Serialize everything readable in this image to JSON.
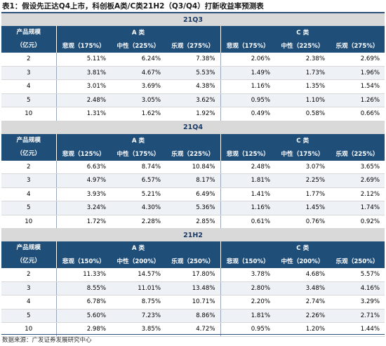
{
  "title": "表1：假设先正达Q4上市，科创板A类/C类21H2（Q3/Q4）打新收益率预测表",
  "row_header": [
    "产品规模",
    "（亿元）"
  ],
  "sections": [
    {
      "name": "21Q3",
      "groups": [
        "A 类",
        "C 类"
      ],
      "columns": [
        "悲观（175%）",
        "中性（225%）",
        "乐观（275%）",
        "悲观（175%）",
        "中性（225%）",
        "乐观（275%）"
      ],
      "rows": [
        {
          "size": "2",
          "values": [
            "5.11%",
            "6.24%",
            "7.38%",
            "2.06%",
            "2.38%",
            "2.69%"
          ]
        },
        {
          "size": "3",
          "values": [
            "3.81%",
            "4.67%",
            "5.53%",
            "1.49%",
            "1.73%",
            "1.96%"
          ]
        },
        {
          "size": "4",
          "values": [
            "3.01%",
            "3.69%",
            "4.38%",
            "1.16%",
            "1.35%",
            "1.54%"
          ]
        },
        {
          "size": "5",
          "values": [
            "2.48%",
            "3.05%",
            "3.62%",
            "0.95%",
            "1.10%",
            "1.26%"
          ]
        },
        {
          "size": "10",
          "values": [
            "1.31%",
            "1.62%",
            "1.92%",
            "0.49%",
            "0.58%",
            "0.66%"
          ]
        }
      ]
    },
    {
      "name": "21Q4",
      "groups": [
        "A 类",
        "C 类"
      ],
      "columns": [
        "悲观（125%）",
        "中性（175%）",
        "乐观（225%）",
        "悲观（125%）",
        "中性（175%）",
        "乐观（225%）"
      ],
      "rows": [
        {
          "size": "2",
          "values": [
            "6.63%",
            "8.74%",
            "10.84%",
            "2.48%",
            "3.07%",
            "3.65%"
          ]
        },
        {
          "size": "3",
          "values": [
            "4.97%",
            "6.57%",
            "8.17%",
            "1.81%",
            "2.25%",
            "2.69%"
          ]
        },
        {
          "size": "4",
          "values": [
            "3.93%",
            "5.21%",
            "6.49%",
            "1.41%",
            "1.77%",
            "2.12%"
          ]
        },
        {
          "size": "5",
          "values": [
            "3.24%",
            "4.30%",
            "5.36%",
            "1.16%",
            "1.45%",
            "1.74%"
          ]
        },
        {
          "size": "10",
          "values": [
            "1.72%",
            "2.28%",
            "2.85%",
            "0.61%",
            "0.76%",
            "0.92%"
          ]
        }
      ]
    },
    {
      "name": "21H2",
      "groups": [
        "A 类",
        "C 类"
      ],
      "columns": [
        "悲观（150%）",
        "中性（200%）",
        "乐观（250%）",
        "悲观（150%）",
        "中性（200%）",
        "乐观（250%）"
      ],
      "rows": [
        {
          "size": "2",
          "values": [
            "11.33%",
            "14.57%",
            "17.80%",
            "3.78%",
            "4.68%",
            "5.57%"
          ]
        },
        {
          "size": "3",
          "values": [
            "8.55%",
            "11.01%",
            "13.48%",
            "2.80%",
            "3.48%",
            "4.16%"
          ]
        },
        {
          "size": "4",
          "values": [
            "6.78%",
            "8.75%",
            "10.71%",
            "2.20%",
            "2.74%",
            "3.29%"
          ]
        },
        {
          "size": "5",
          "values": [
            "5.60%",
            "7.23%",
            "8.86%",
            "1.81%",
            "2.26%",
            "2.71%"
          ]
        },
        {
          "size": "10",
          "values": [
            "2.98%",
            "3.85%",
            "4.72%",
            "0.95%",
            "1.20%",
            "1.44%"
          ]
        }
      ]
    }
  ],
  "source": "数据来源：广发证券发展研究中心",
  "colors": {
    "header_bg": "#1f4e79",
    "section_bg": "#d9d9d9",
    "alt_row": "#eef1f6"
  }
}
